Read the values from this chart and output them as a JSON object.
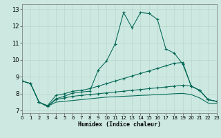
{
  "xlabel": "Humidex (Indice chaleur)",
  "bg_color": "#cce8e0",
  "grid_color": "#b8d8cc",
  "line_color": "#006655",
  "xlim": [
    0,
    23
  ],
  "ylim": [
    6.85,
    13.3
  ],
  "xticks": [
    0,
    1,
    2,
    3,
    4,
    5,
    6,
    7,
    8,
    9,
    10,
    11,
    12,
    13,
    14,
    15,
    16,
    17,
    18,
    19,
    20,
    21,
    22,
    23
  ],
  "yticks": [
    7,
    8,
    9,
    10,
    11,
    12,
    13
  ],
  "c1_x": [
    0,
    1,
    2,
    3,
    4,
    5,
    6,
    7,
    8,
    9,
    10,
    11,
    12,
    13,
    14,
    15,
    16,
    17,
    18,
    19,
    20,
    21,
    22,
    23
  ],
  "c1_y": [
    8.75,
    8.6,
    7.5,
    7.25,
    7.7,
    7.85,
    8.05,
    8.1,
    8.15,
    9.4,
    9.95,
    10.95,
    12.8,
    11.9,
    12.8,
    12.75,
    12.4,
    10.65,
    10.4,
    9.75,
    8.45,
    8.2,
    7.65,
    7.55
  ],
  "c2_x": [
    0,
    1,
    2,
    3,
    4,
    5,
    6,
    7,
    8,
    9,
    10,
    11,
    12,
    13,
    14,
    15,
    16,
    17,
    18,
    19,
    20,
    21,
    22,
    23
  ],
  "c2_y": [
    8.75,
    8.6,
    7.5,
    7.3,
    7.9,
    8.0,
    8.15,
    8.2,
    8.3,
    8.45,
    8.6,
    8.75,
    8.9,
    9.05,
    9.2,
    9.35,
    9.5,
    9.65,
    9.8,
    9.85,
    8.45,
    8.2,
    7.65,
    7.55
  ],
  "c3_x": [
    0,
    1,
    2,
    3,
    4,
    5,
    6,
    7,
    8,
    9,
    10,
    11,
    12,
    13,
    14,
    15,
    16,
    17,
    18,
    19,
    20,
    21,
    22,
    23
  ],
  "c3_y": [
    8.75,
    8.6,
    7.5,
    7.25,
    7.65,
    7.75,
    7.85,
    7.9,
    7.95,
    8.0,
    8.05,
    8.1,
    8.15,
    8.2,
    8.25,
    8.3,
    8.35,
    8.4,
    8.45,
    8.5,
    8.45,
    8.2,
    7.65,
    7.55
  ],
  "c4_x": [
    2,
    3,
    4,
    5,
    6,
    7,
    8,
    9,
    10,
    11,
    12,
    13,
    14,
    15,
    16,
    17,
    18,
    19,
    20,
    21,
    22,
    23
  ],
  "c4_y": [
    7.5,
    7.25,
    7.5,
    7.55,
    7.6,
    7.65,
    7.7,
    7.75,
    7.8,
    7.82,
    7.85,
    7.87,
    7.9,
    7.92,
    7.95,
    7.97,
    8.0,
    8.02,
    7.95,
    7.75,
    7.45,
    7.4
  ]
}
